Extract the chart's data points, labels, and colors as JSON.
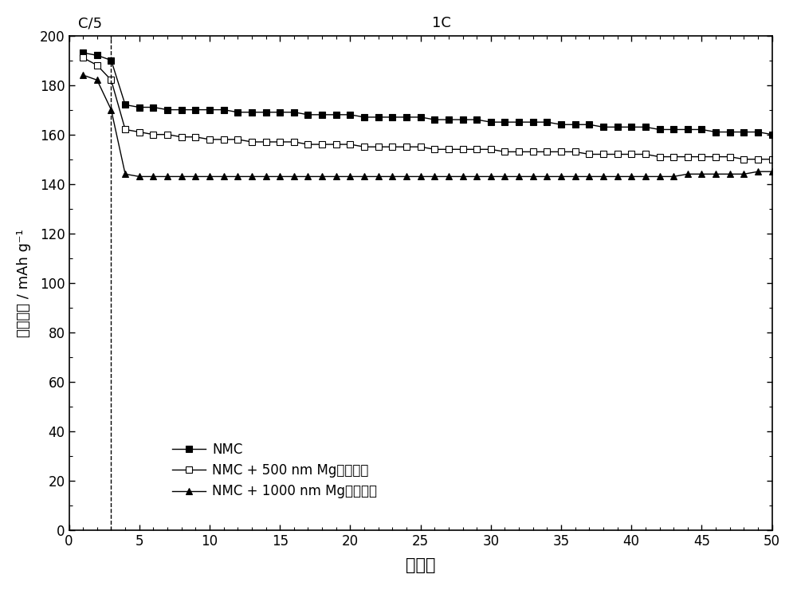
{
  "title_c5": "C/5",
  "title_1c": "1C",
  "xlabel": "循环数",
  "ylabel": "放电容量 / mAh g⁻¹",
  "xlim": [
    0,
    50
  ],
  "ylim": [
    0,
    200
  ],
  "xticks": [
    0,
    5,
    10,
    15,
    20,
    25,
    30,
    35,
    40,
    45,
    50
  ],
  "yticks": [
    0,
    20,
    40,
    60,
    80,
    100,
    120,
    140,
    160,
    180,
    200
  ],
  "dashed_x": 3,
  "nmc_x": [
    1,
    2,
    3,
    4,
    5,
    6,
    7,
    8,
    9,
    10,
    11,
    12,
    13,
    14,
    15,
    16,
    17,
    18,
    19,
    20,
    21,
    22,
    23,
    24,
    25,
    26,
    27,
    28,
    29,
    30,
    31,
    32,
    33,
    34,
    35,
    36,
    37,
    38,
    39,
    40,
    41,
    42,
    43,
    44,
    45,
    46,
    47,
    48,
    49,
    50
  ],
  "nmc_y": [
    193,
    192,
    190,
    172,
    171,
    171,
    170,
    170,
    170,
    170,
    170,
    169,
    169,
    169,
    169,
    169,
    168,
    168,
    168,
    168,
    167,
    167,
    167,
    167,
    167,
    166,
    166,
    166,
    166,
    165,
    165,
    165,
    165,
    165,
    164,
    164,
    164,
    163,
    163,
    163,
    163,
    162,
    162,
    162,
    162,
    161,
    161,
    161,
    161,
    160
  ],
  "nmc500_x": [
    1,
    2,
    3,
    4,
    5,
    6,
    7,
    8,
    9,
    10,
    11,
    12,
    13,
    14,
    15,
    16,
    17,
    18,
    19,
    20,
    21,
    22,
    23,
    24,
    25,
    26,
    27,
    28,
    29,
    30,
    31,
    32,
    33,
    34,
    35,
    36,
    37,
    38,
    39,
    40,
    41,
    42,
    43,
    44,
    45,
    46,
    47,
    48,
    49,
    50
  ],
  "nmc500_y": [
    191,
    188,
    182,
    162,
    161,
    160,
    160,
    159,
    159,
    158,
    158,
    158,
    157,
    157,
    157,
    157,
    156,
    156,
    156,
    156,
    155,
    155,
    155,
    155,
    155,
    154,
    154,
    154,
    154,
    154,
    153,
    153,
    153,
    153,
    153,
    153,
    152,
    152,
    152,
    152,
    152,
    151,
    151,
    151,
    151,
    151,
    151,
    150,
    150,
    150
  ],
  "nmc1000_x": [
    1,
    2,
    3,
    4,
    5,
    6,
    7,
    8,
    9,
    10,
    11,
    12,
    13,
    14,
    15,
    16,
    17,
    18,
    19,
    20,
    21,
    22,
    23,
    24,
    25,
    26,
    27,
    28,
    29,
    30,
    31,
    32,
    33,
    34,
    35,
    36,
    37,
    38,
    39,
    40,
    41,
    42,
    43,
    44,
    45,
    46,
    47,
    48,
    49,
    50
  ],
  "nmc1000_y": [
    184,
    182,
    170,
    144,
    143,
    143,
    143,
    143,
    143,
    143,
    143,
    143,
    143,
    143,
    143,
    143,
    143,
    143,
    143,
    143,
    143,
    143,
    143,
    143,
    143,
    143,
    143,
    143,
    143,
    143,
    143,
    143,
    143,
    143,
    143,
    143,
    143,
    143,
    143,
    143,
    143,
    143,
    143,
    144,
    144,
    144,
    144,
    144,
    145,
    145
  ],
  "legend_nmc": "NMC",
  "legend_nmc500": "NMC + 500 nm Mg（溅射）",
  "legend_nmc1000": "NMC + 1000 nm Mg（溅射）",
  "line_color": "#000000",
  "background_color": "#ffffff",
  "marker_size": 6,
  "line_width": 1.0
}
